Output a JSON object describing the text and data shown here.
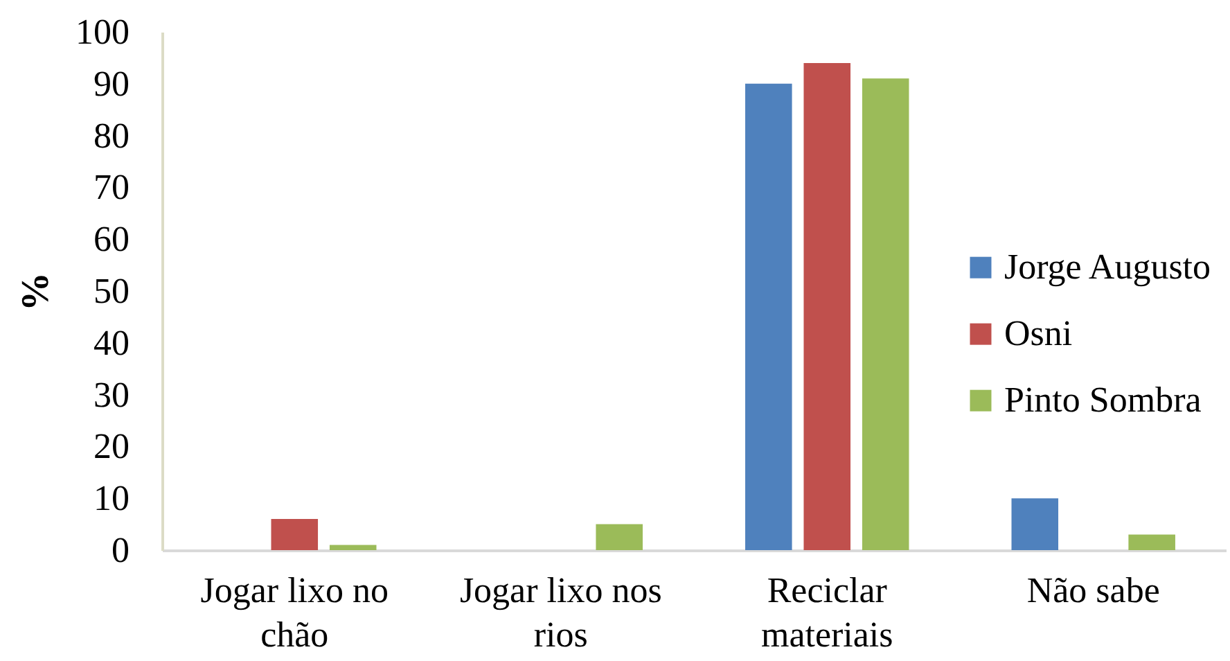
{
  "chart_data": {
    "type": "bar",
    "ylabel": "%",
    "categories": [
      "Jogar lixo no chão",
      "Jogar lixo nos rios",
      "Reciclar materiais",
      "Não sabe"
    ],
    "series": [
      {
        "name": "Jorge Augusto",
        "color": "#4f81bd",
        "values": [
          0,
          0,
          90,
          10
        ]
      },
      {
        "name": "Osni",
        "color": "#c0504d",
        "values": [
          6,
          0,
          94,
          0
        ]
      },
      {
        "name": "Pinto Sombra",
        "color": "#9bbb59",
        "values": [
          1,
          5,
          91,
          3
        ]
      }
    ],
    "ylim": [
      0,
      100
    ],
    "yticks": [
      0,
      10,
      20,
      30,
      40,
      50,
      60,
      70,
      80,
      90,
      100
    ],
    "legend": "right"
  }
}
